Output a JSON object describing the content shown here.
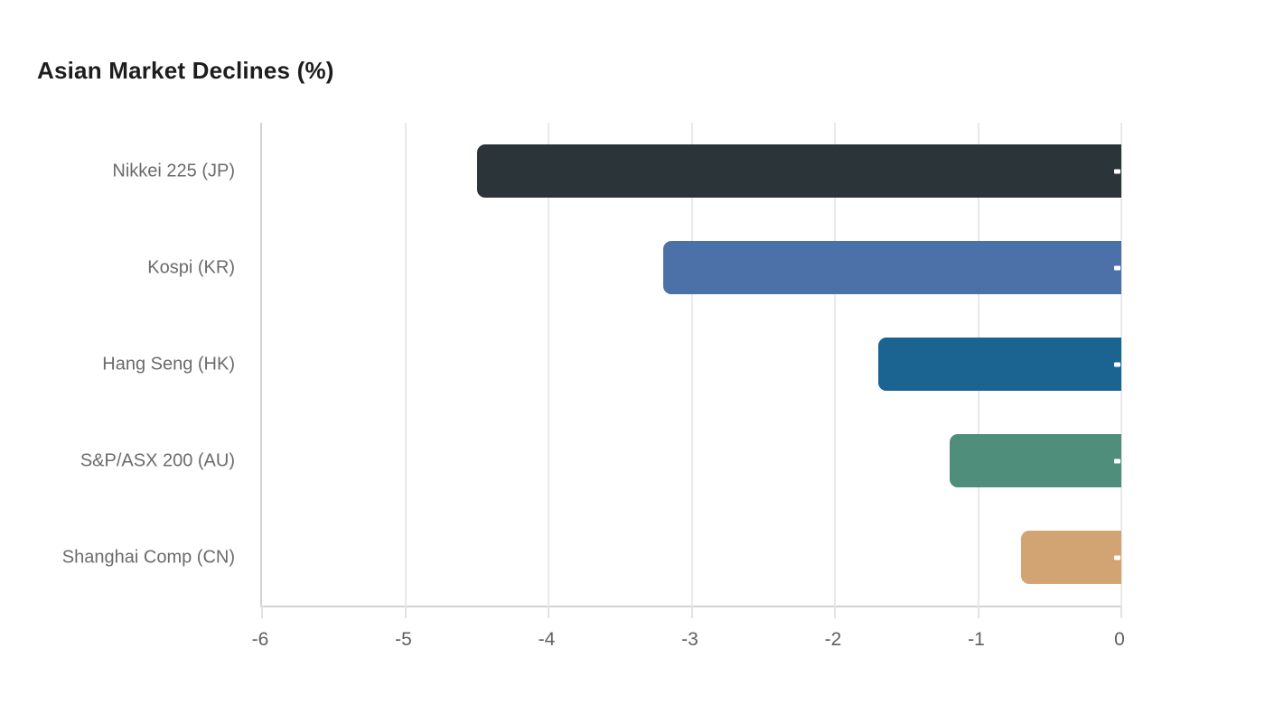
{
  "title": "Asian Market Declines (%)",
  "chart_data": {
    "type": "bar",
    "orientation": "horizontal",
    "title": "Asian Market Declines (%)",
    "categories": [
      "Nikkei 225 (JP)",
      "Kospi (KR)",
      "Hang Seng (HK)",
      "S&P/ASX 200 (AU)",
      "Shanghai Comp (CN)"
    ],
    "values": [
      -4.5,
      -3.2,
      -1.7,
      -1.2,
      -0.7
    ],
    "bar_colors": [
      "#2b3438",
      "#4c70a8",
      "#1b6390",
      "#4e8e7b",
      "#d2a373"
    ],
    "xlabel": "",
    "ylabel": "",
    "xlim": [
      -6,
      0
    ],
    "xticks": [
      "-6",
      "-5",
      "-4",
      "-3",
      "-2",
      "-1",
      "0"
    ],
    "xtick_values": [
      -6,
      -5,
      -4,
      -3,
      -2,
      -1,
      0
    ],
    "grid": "vertical-gridlines-on",
    "legend": "none",
    "bar_end_marker": "small white dash at bar right end (clipped white value label)"
  },
  "style_colors": {
    "background": "#ffffff",
    "title_text": "#1d1d1d",
    "category_text": "#6b6b6b",
    "tick_text": "#606060",
    "axis_line": "#d2d2d2",
    "gridline": "#e9e9e9"
  }
}
